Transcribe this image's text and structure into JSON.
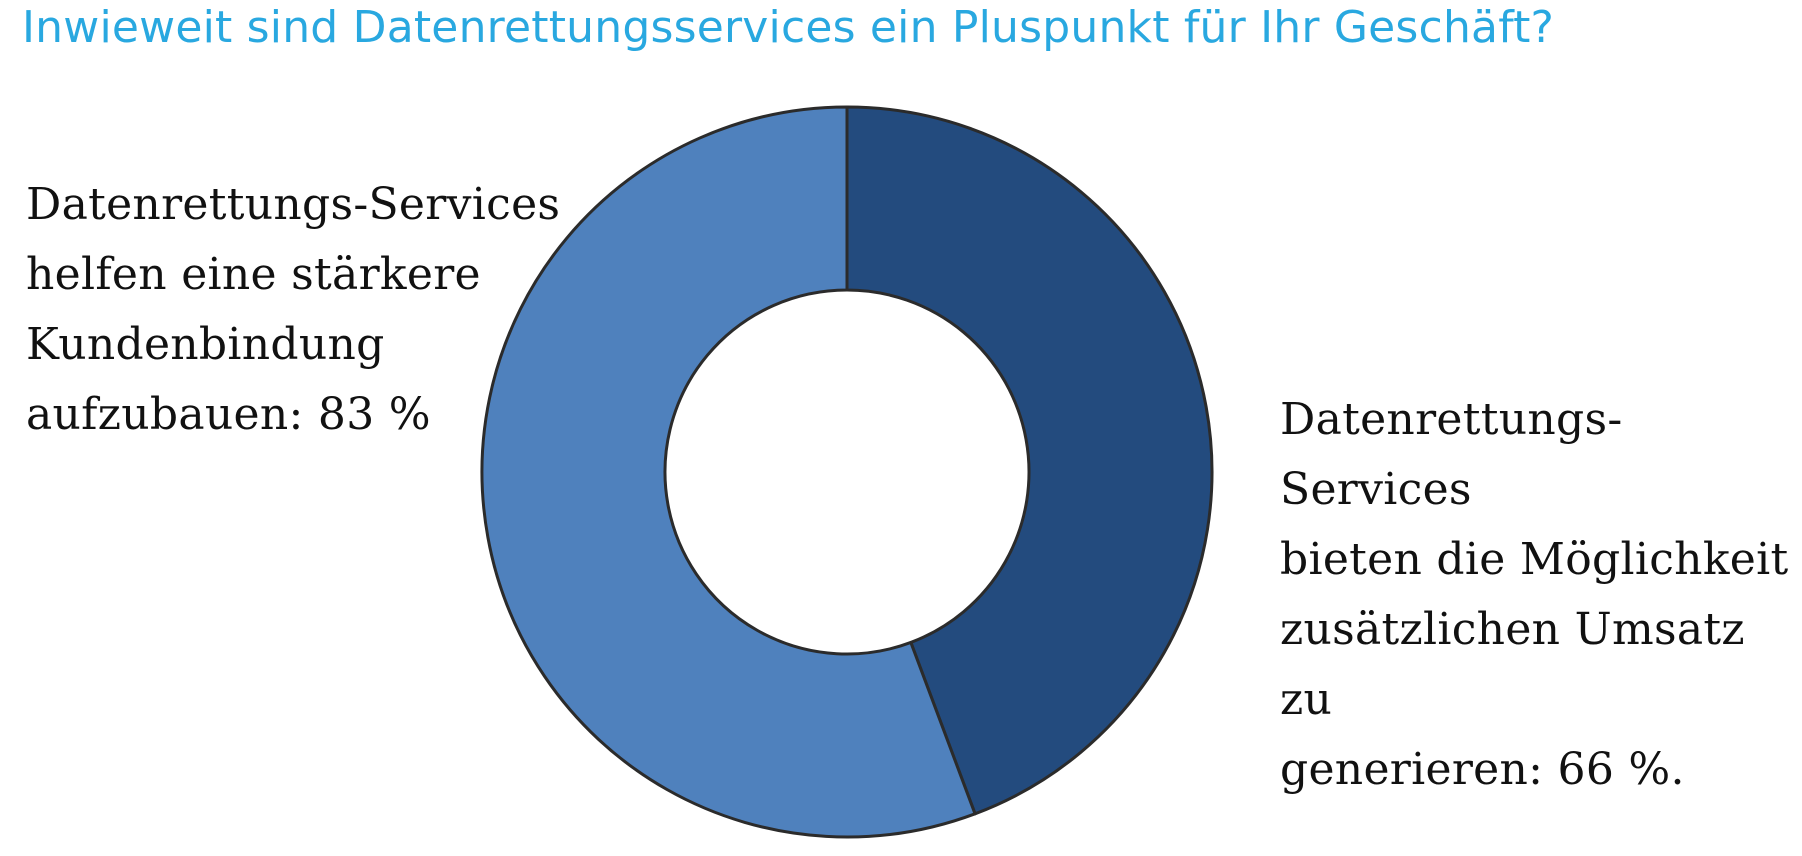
{
  "title": "Inwieweit sind Datenrettungsservices ein Pluspunkt für Ihr Geschäft?",
  "chart_data": {
    "type": "pie",
    "variant": "donut",
    "title": "Inwieweit sind Datenrettungsservices ein Pluspunkt für Ihr Geschäft?",
    "slices": [
      {
        "label": "Datenrettungs-Services\nbieten die Möglichkeit\nzusätzlichen Umsatz zu\ngenerieren: 66 %.",
        "value": 66,
        "color": "#234b7e"
      },
      {
        "label": "Datenrettungs-Services\nhelfen eine stärkere\nKundenbindung\naufzubauen: 83 %",
        "value": 83,
        "color": "#4f81bd"
      }
    ],
    "start": "top",
    "direction": "clockwise",
    "outline_color": "#2b2b2b",
    "legend": "none"
  }
}
